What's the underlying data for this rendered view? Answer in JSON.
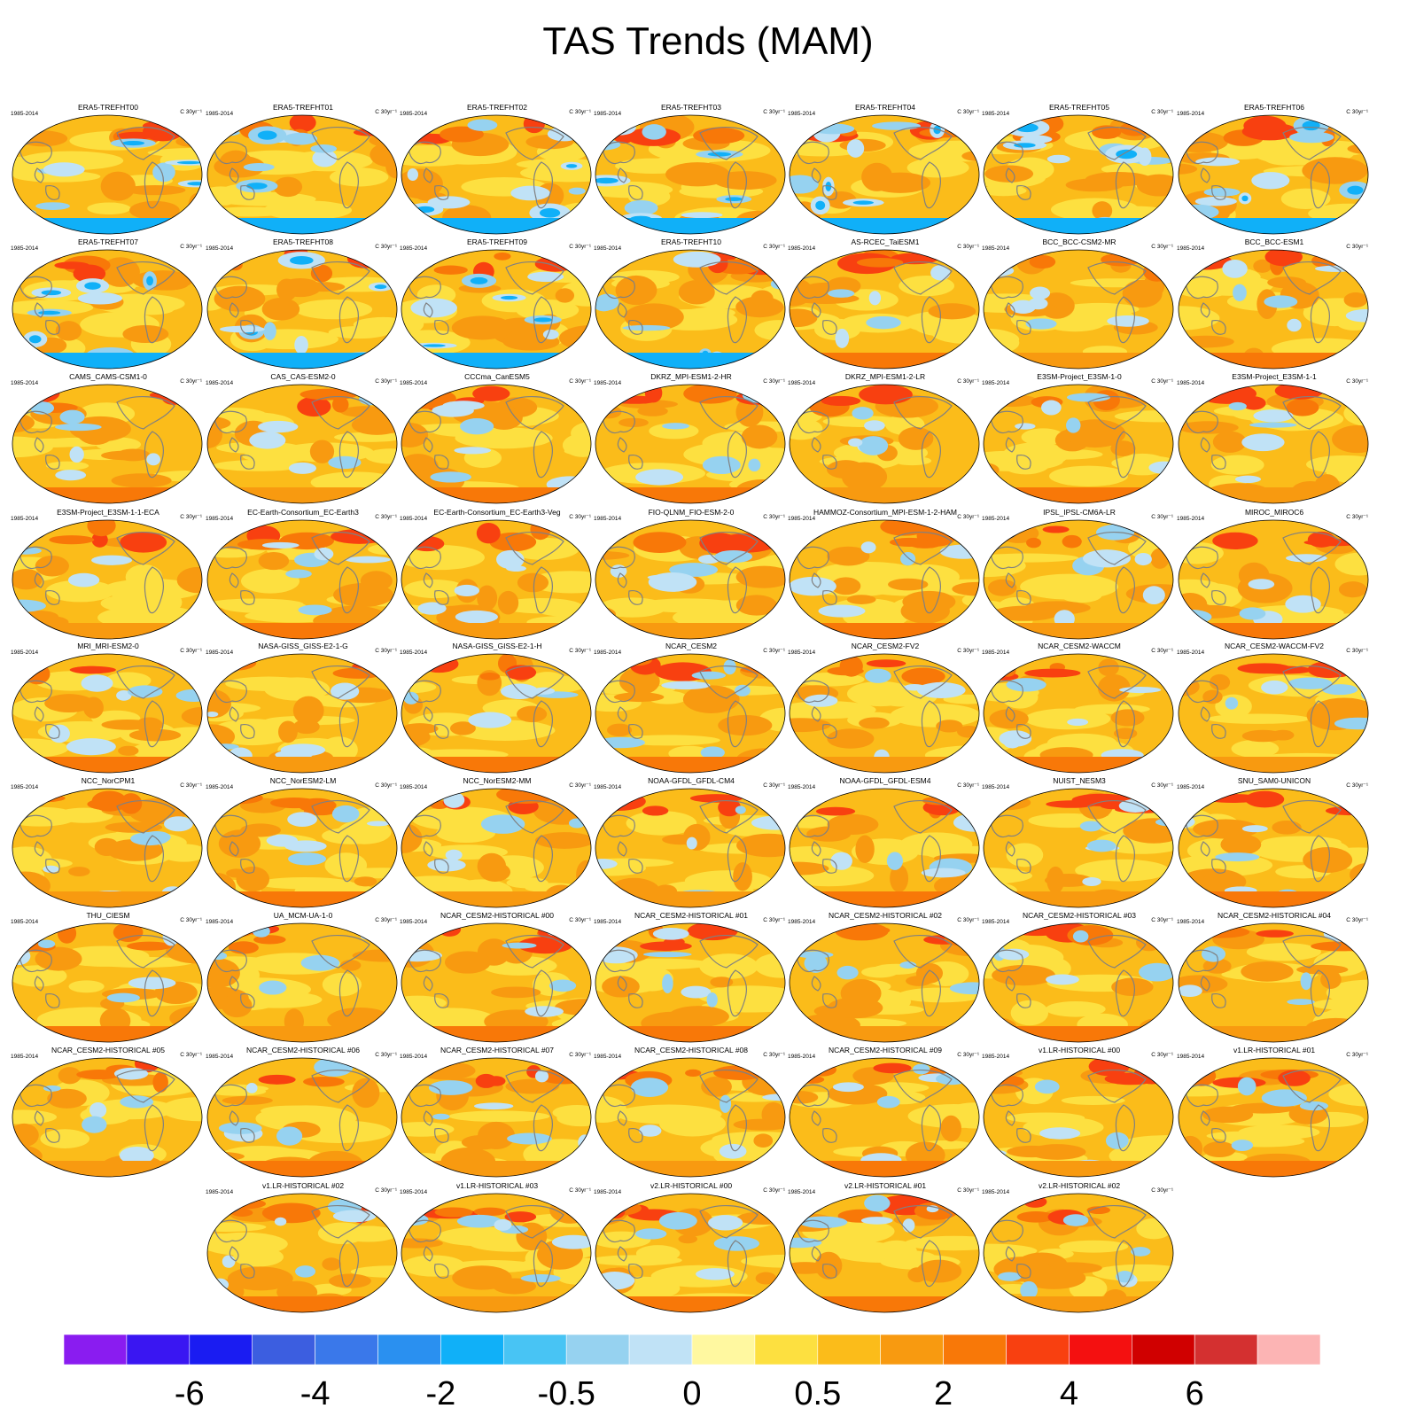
{
  "title": "TAS Trends (MAM)",
  "period_label": "1985-2014",
  "units_label": "C 30yr⁻¹",
  "panels": [
    "ERA5-TREFHT00",
    "ERA5-TREFHT01",
    "ERA5-TREFHT02",
    "ERA5-TREFHT03",
    "ERA5-TREFHT04",
    "ERA5-TREFHT05",
    "ERA5-TREFHT06",
    "ERA5-TREFHT07",
    "ERA5-TREFHT08",
    "ERA5-TREFHT09",
    "ERA5-TREFHT10",
    "AS-RCEC_TaiESM1",
    "BCC_BCC-CSM2-MR",
    "BCC_BCC-ESM1",
    "CAMS_CAMS-CSM1-0",
    "CAS_CAS-ESM2-0",
    "CCCma_CanESM5",
    "DKRZ_MPI-ESM1-2-HR",
    "DKRZ_MPI-ESM1-2-LR",
    "E3SM-Project_E3SM-1-0",
    "E3SM-Project_E3SM-1-1",
    "E3SM-Project_E3SM-1-1-ECA",
    "EC-Earth-Consortium_EC-Earth3",
    "EC-Earth-Consortium_EC-Earth3-Veg",
    "FIO-QLNM_FIO-ESM-2-0",
    "HAMMOZ-Consortium_MPI-ESM-1-2-HAM",
    "IPSL_IPSL-CM6A-LR",
    "MIROC_MIROC6",
    "MRI_MRI-ESM2-0",
    "NASA-GISS_GISS-E2-1-G",
    "NASA-GISS_GISS-E2-1-H",
    "NCAR_CESM2",
    "NCAR_CESM2-FV2",
    "NCAR_CESM2-WACCM",
    "NCAR_CESM2-WACCM-FV2",
    "NCC_NorCPM1",
    "NCC_NorESM2-LM",
    "NCC_NorESM2-MM",
    "NOAA-GFDL_GFDL-CM4",
    "NOAA-GFDL_GFDL-ESM4",
    "NUIST_NESM3",
    "SNU_SAM0-UNICON",
    "THU_CIESM",
    "UA_MCM-UA-1-0",
    "NCAR_CESM2-HISTORICAL  #00",
    "NCAR_CESM2-HISTORICAL  #01",
    "NCAR_CESM2-HISTORICAL  #02",
    "NCAR_CESM2-HISTORICAL  #03",
    "NCAR_CESM2-HISTORICAL  #04",
    "NCAR_CESM2-HISTORICAL  #05",
    "NCAR_CESM2-HISTORICAL  #06",
    "NCAR_CESM2-HISTORICAL  #07",
    "NCAR_CESM2-HISTORICAL  #08",
    "NCAR_CESM2-HISTORICAL  #09",
    "v1.LR-HISTORICAL  #00",
    "v1.LR-HISTORICAL  #01",
    "v1.LR-HISTORICAL  #02",
    "v1.LR-HISTORICAL  #03",
    "v2.LR-HISTORICAL  #00",
    "v2.LR-HISTORICAL  #01",
    "v2.LR-HISTORICAL  #02"
  ],
  "chart_data": {
    "type": "heatmap",
    "title": "TAS Trends (MAM)",
    "variable": "TAS",
    "season": "MAM",
    "period": "1985-2014",
    "units": "C 30yr^-1",
    "colorbar": {
      "colors": [
        "#8a1cf0",
        "#3a16f2",
        "#1a1cf2",
        "#3c5ee0",
        "#3a78ea",
        "#2a90f0",
        "#10b0f8",
        "#48c4f4",
        "#96d2f0",
        "#c0e2f6",
        "#fff8a0",
        "#fde040",
        "#fbbc1a",
        "#f89a10",
        "#f87808",
        "#f84010",
        "#f41010",
        "#d00000",
        "#d43030",
        "#fcb4b4"
      ],
      "tick_labels": [
        "-6",
        "-4",
        "-2",
        "-0.5",
        "0",
        "0.5",
        "2",
        "4",
        "6"
      ],
      "tick_boundaries": [
        2,
        4,
        6,
        8,
        10,
        12,
        14,
        16,
        18
      ]
    },
    "panel_count": 61
  }
}
